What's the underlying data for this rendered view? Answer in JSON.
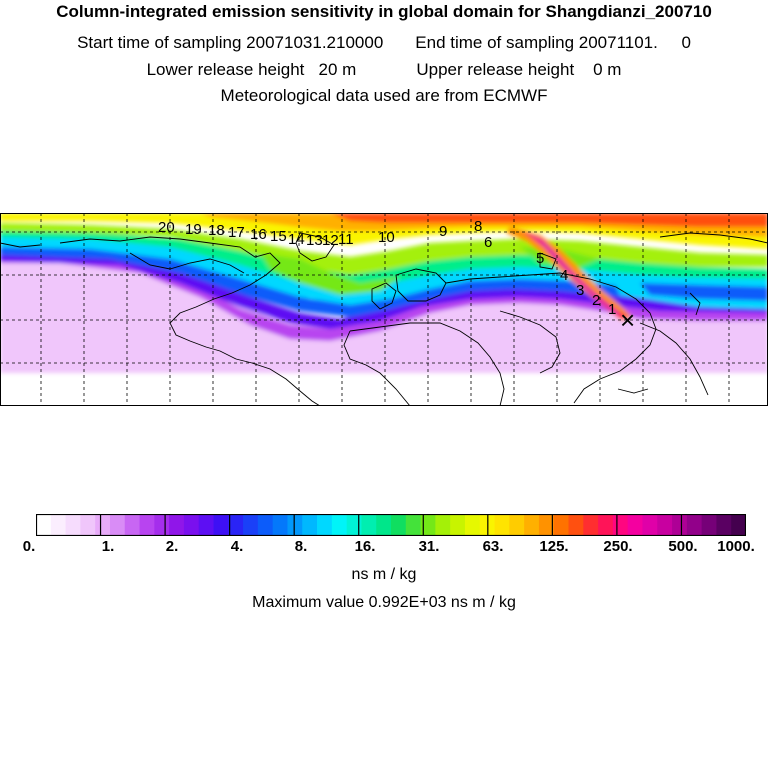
{
  "header": {
    "title": "Column-integrated emission sensitivity in global domain for Shangdianzi_200710",
    "start_label": "Start time of sampling 20071031.210000",
    "end_label": "End time of sampling 20071101.     0",
    "lower_label": "Lower release height   20 m",
    "upper_label": "Upper release height    0 m",
    "met_label": "Meteorological data used are from ECMWF"
  },
  "colorbar": {
    "ticks": [
      "0.",
      "1.",
      "2.",
      "4.",
      "8.",
      "16.",
      "31.",
      "63.",
      "125.",
      "250.",
      "500.",
      "1000."
    ],
    "colors": [
      "#ffffff",
      "#fbeefe",
      "#f6dcfd",
      "#f0c6fb",
      "#e8abf9",
      "#d98cf6",
      "#c866f3",
      "#b844f0",
      "#a52eec",
      "#9016e9",
      "#7a10ee",
      "#5d0ff3",
      "#3e10f5",
      "#2a24f6",
      "#1a40f8",
      "#0c5cfa",
      "#0478fb",
      "#0298fc",
      "#00b8fe",
      "#00d8ff",
      "#00f4f8",
      "#00f2d6",
      "#00eeb0",
      "#00e68a",
      "#10de60",
      "#44e23a",
      "#74e818",
      "#a4f008",
      "#c8f400",
      "#e6f800",
      "#faf400",
      "#ffe400",
      "#ffcc00",
      "#ffb000",
      "#ff9200",
      "#ff7200",
      "#ff5010",
      "#ff2e30",
      "#ff1458",
      "#ff0680",
      "#f400a0",
      "#e000a8",
      "#c800a0",
      "#ae0096",
      "#92008a",
      "#760078",
      "#5a0062",
      "#44004e"
    ],
    "unit": "ns m / kg",
    "max_label": "Maximum value  0.992E+03 ns m / kg"
  },
  "map": {
    "source_marker": "×",
    "trajectory_labels": [
      "20",
      "19",
      "18",
      "17",
      "16",
      "15",
      "14",
      "13",
      "12",
      "11",
      "10",
      "9",
      "8",
      "6",
      "5",
      "4",
      "3",
      "2",
      "1"
    ]
  }
}
